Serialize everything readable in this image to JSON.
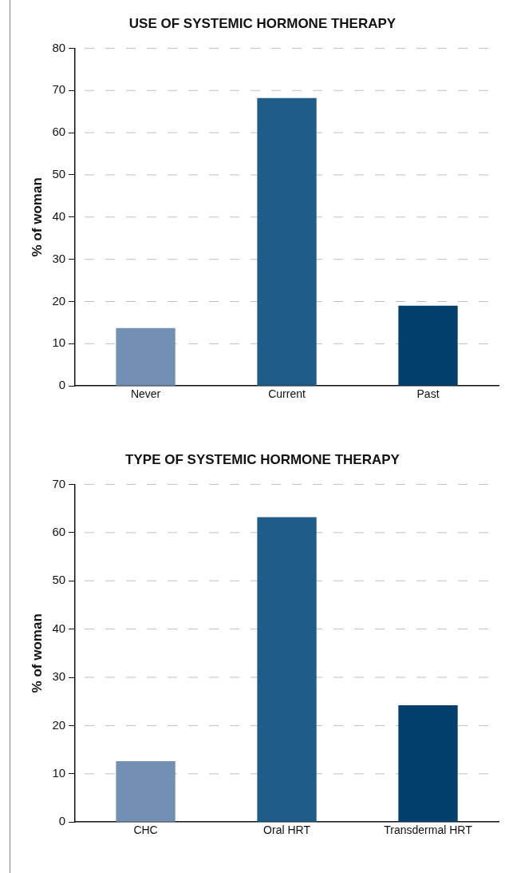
{
  "chart_data": [
    {
      "type": "bar",
      "title": "USE OF SYSTEMIC HORMONE THERAPY",
      "ylabel": "% of woman",
      "categories": [
        "Never",
        "Current",
        "Past"
      ],
      "values": [
        13.7,
        68.2,
        19.0
      ],
      "colors": [
        "#738fb3",
        "#1f5c87",
        "#033f6d"
      ],
      "ylim": [
        0,
        80
      ],
      "yticks": [
        0,
        10,
        20,
        30,
        40,
        50,
        60,
        70,
        80
      ],
      "grid": "y",
      "legend": false
    },
    {
      "type": "bar",
      "title": "TYPE OF SYSTEMIC HORMONE THERAPY",
      "ylabel": "% of woman",
      "categories": [
        "CHC",
        "Oral HRT",
        "Transdermal HRT"
      ],
      "values": [
        12.6,
        63.2,
        24.2
      ],
      "colors": [
        "#738fb3",
        "#1f5c87",
        "#033f6d"
      ],
      "ylim": [
        0,
        70
      ],
      "yticks": [
        0,
        10,
        20,
        30,
        40,
        50,
        60,
        70
      ],
      "grid": "y",
      "legend": false
    }
  ]
}
